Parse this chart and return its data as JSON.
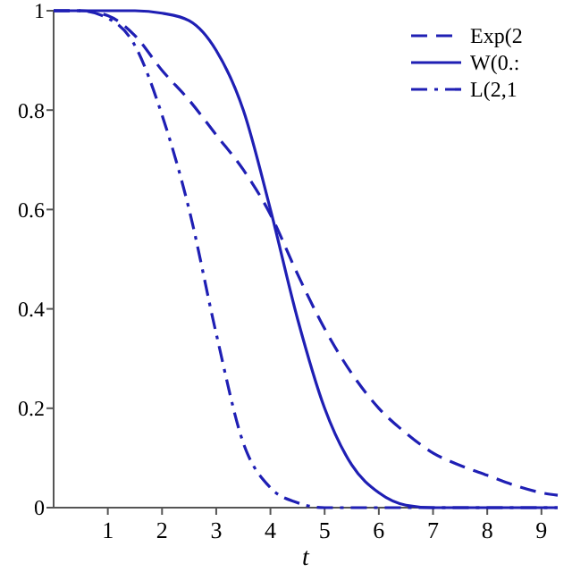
{
  "chart_data": {
    "type": "line",
    "xlabel": "t",
    "xlim": [
      0,
      9.3
    ],
    "xticks": [
      1,
      2,
      3,
      4,
      5,
      6,
      7,
      8,
      9
    ],
    "ylim": [
      0,
      1
    ],
    "yticks": [
      0,
      0.2,
      0.4,
      0.6,
      0.8,
      1
    ],
    "grid": false,
    "legend": "top right",
    "series": [
      {
        "name": "Exp(2",
        "color": "#1f1fb4",
        "line_style": "dashed",
        "x": [
          0,
          0.5,
          1,
          1.5,
          2,
          2.5,
          3,
          3.5,
          4,
          4.5,
          5,
          5.5,
          6,
          6.5,
          7,
          7.5,
          8,
          8.5,
          9,
          9.3
        ],
        "values": [
          1,
          1,
          0.99,
          0.95,
          0.88,
          0.82,
          0.75,
          0.68,
          0.59,
          0.47,
          0.36,
          0.27,
          0.2,
          0.15,
          0.11,
          0.085,
          0.065,
          0.045,
          0.03,
          0.025
        ]
      },
      {
        "name": "W(0.:",
        "color": "#1f1fb4",
        "line_style": "solid",
        "x": [
          0,
          0.5,
          1,
          1.5,
          2,
          2.5,
          3,
          3.5,
          4,
          4.5,
          5,
          5.5,
          6,
          6.5,
          7,
          8,
          9,
          9.3
        ],
        "values": [
          1,
          1,
          1,
          1,
          0.995,
          0.98,
          0.92,
          0.8,
          0.6,
          0.38,
          0.2,
          0.086,
          0.03,
          0.005,
          0,
          0,
          0,
          0
        ]
      },
      {
        "name": "L(2,1",
        "color": "#1f1fb4",
        "line_style": "dashdot",
        "x": [
          0,
          0.5,
          0.9,
          1.5,
          2,
          2.5,
          3,
          3.5,
          4,
          4.5,
          5,
          6,
          7,
          8,
          9,
          9.3
        ],
        "values": [
          1,
          1,
          0.99,
          0.93,
          0.79,
          0.6,
          0.35,
          0.13,
          0.04,
          0.01,
          0,
          0,
          0,
          0,
          0,
          0
        ]
      }
    ]
  }
}
